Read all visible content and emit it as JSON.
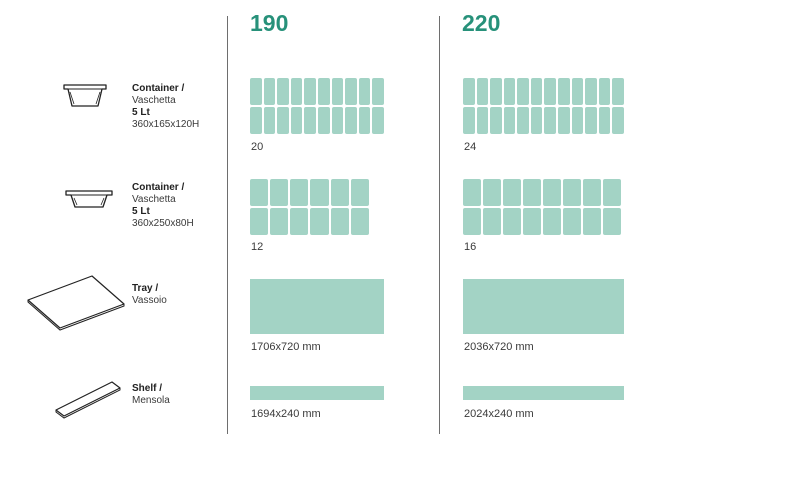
{
  "columns": [
    {
      "model": "190",
      "container_5lt_120h_count": 20,
      "container_5lt_80h_count": 12,
      "tray": "1706x720 mm",
      "shelf": "1694x240 mm"
    },
    {
      "model": "220",
      "container_5lt_120h_count": 24,
      "container_5lt_80h_count": 16,
      "tray": "2036x720 mm",
      "shelf": "2024x240 mm"
    }
  ],
  "rows": [
    {
      "name": "Container /",
      "alt": "Vaschetta",
      "capacity": "5 Lt",
      "size": "360x165x120H",
      "icon": "container-deep-icon"
    },
    {
      "name": "Container /",
      "alt": "Vaschetta",
      "capacity": "5 Lt",
      "size": "360x250x80H",
      "icon": "container-shallow-icon"
    },
    {
      "name": "Tray /",
      "alt": "Vassoio",
      "icon": "tray-icon"
    },
    {
      "name": "Shelf /",
      "alt": "Mensola",
      "icon": "shelf-icon"
    }
  ],
  "colors": {
    "accent": "#27917a",
    "fill": "#a3d3c5"
  }
}
